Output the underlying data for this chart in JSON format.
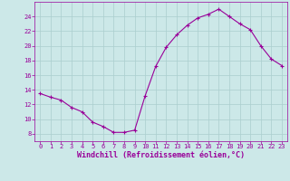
{
  "x": [
    0,
    1,
    2,
    3,
    4,
    5,
    6,
    7,
    8,
    9,
    10,
    11,
    12,
    13,
    14,
    15,
    16,
    17,
    18,
    19,
    20,
    21,
    22,
    23
  ],
  "y": [
    13.5,
    13.0,
    12.6,
    11.6,
    11.0,
    9.6,
    9.0,
    8.2,
    8.2,
    8.5,
    13.2,
    17.2,
    19.8,
    21.5,
    22.8,
    23.8,
    24.3,
    25.0,
    24.0,
    23.0,
    22.2,
    20.0,
    18.2,
    17.3
  ],
  "line_color": "#990099",
  "marker": "+",
  "bg_color": "#cce8e8",
  "grid_color": "#aacece",
  "xlabel": "Windchill (Refroidissement éolien,°C)",
  "xlabel_color": "#990099",
  "tick_color": "#990099",
  "ylim": [
    7,
    26
  ],
  "xlim": [
    -0.5,
    23.5
  ],
  "yticks": [
    8,
    10,
    12,
    14,
    16,
    18,
    20,
    22,
    24
  ],
  "xticks": [
    0,
    1,
    2,
    3,
    4,
    5,
    6,
    7,
    8,
    9,
    10,
    11,
    12,
    13,
    14,
    15,
    16,
    17,
    18,
    19,
    20,
    21,
    22,
    23
  ],
  "tick_fontsize": 5,
  "xlabel_fontsize": 6,
  "linewidth": 0.8,
  "markersize": 3
}
